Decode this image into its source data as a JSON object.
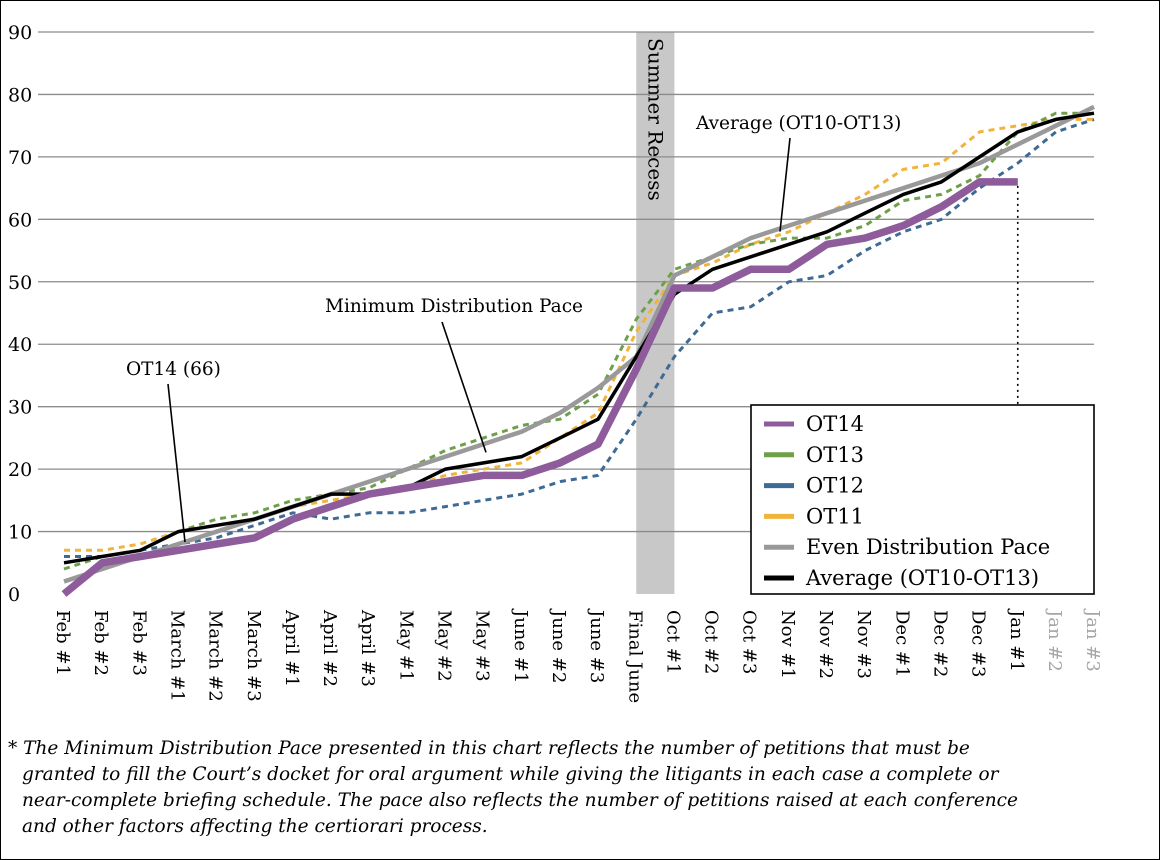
{
  "chart_data": {
    "type": "line",
    "title": "",
    "xlabel": "",
    "ylabel": "",
    "ylim": [
      0,
      90
    ],
    "yticks": [
      0,
      10,
      20,
      30,
      40,
      50,
      60,
      70,
      80,
      90
    ],
    "grid": true,
    "categories": [
      "Feb #1",
      "Feb #2",
      "Feb #3",
      "March #1",
      "March #2",
      "March #3",
      "April #1",
      "April #2",
      "April #3",
      "May #1",
      "May #2",
      "May #3",
      "June #1",
      "June #2",
      "June #3",
      "Final June",
      "Oct #1",
      "Oct #2",
      "Oct #3",
      "Nov #1",
      "Nov #2",
      "Nov #3",
      "Dec #1",
      "Dec #2",
      "Dec #3",
      "Jan #1",
      "Jan #2",
      "Jan #3"
    ],
    "muted_categories": [
      "Jan #2",
      "Jan #3"
    ],
    "shaded_band": {
      "label": "Summer Recess",
      "from": "Final June",
      "to": "Oct #1",
      "color": "#c8c8c8"
    },
    "series": [
      {
        "name": "OT14",
        "color": "#8e5b9b",
        "style": "thick",
        "values": [
          0,
          5,
          6,
          7,
          8,
          9,
          12,
          14,
          16,
          17,
          18,
          19,
          19,
          21,
          24,
          36,
          49,
          49,
          52,
          52,
          56,
          57,
          59,
          62,
          66,
          66,
          null,
          null
        ]
      },
      {
        "name": "OT13",
        "color": "#6ea04a",
        "style": "dashed",
        "values": [
          4,
          6,
          7,
          10,
          12,
          13,
          15,
          16,
          17,
          20,
          23,
          25,
          27,
          28,
          32,
          44,
          52,
          54,
          56,
          57,
          57,
          59,
          63,
          64,
          67,
          74,
          77,
          77
        ]
      },
      {
        "name": "OT12",
        "color": "#3e6a94",
        "style": "dashed",
        "values": [
          6,
          6,
          7,
          8,
          9,
          11,
          13,
          12,
          13,
          13,
          14,
          15,
          16,
          18,
          19,
          28,
          38,
          45,
          46,
          50,
          51,
          55,
          58,
          60,
          65,
          69,
          74,
          76
        ]
      },
      {
        "name": "OT11",
        "color": "#f0b43c",
        "style": "dashed",
        "values": [
          7,
          7,
          8,
          10,
          11,
          12,
          14,
          15,
          16,
          17,
          19,
          20,
          21,
          25,
          29,
          42,
          51,
          53,
          56,
          58,
          61,
          64,
          68,
          69,
          74,
          75,
          76,
          76
        ]
      },
      {
        "name": "Even Distribution Pace",
        "color": "#999999",
        "style": "solid",
        "values": [
          2,
          4,
          6,
          8,
          10,
          12,
          14,
          16,
          18,
          20,
          22,
          24,
          26,
          29,
          33,
          38,
          51,
          54,
          57,
          59,
          61,
          63,
          65,
          67,
          69,
          72,
          75,
          78
        ]
      },
      {
        "name": "Average (OT10-OT13)",
        "color": "#000000",
        "style": "solid",
        "values": [
          5,
          6,
          7,
          10,
          11,
          12,
          14,
          16,
          16,
          17,
          20,
          21,
          22,
          25,
          28,
          38,
          48,
          52,
          54,
          56,
          58,
          61,
          64,
          66,
          70,
          74,
          76,
          77
        ]
      }
    ],
    "legend": {
      "placement": "bottom-right"
    },
    "annotations": [
      {
        "text": "Average (OT10-OT13)"
      },
      {
        "text": "Minimum Distribution Pace"
      },
      {
        "text": "OT14 (66)"
      }
    ],
    "summer_label": "Summer Recess"
  },
  "footnote": {
    "lines": [
      "* The Minimum Distribution Pace presented in this chart reflects the number of petitions that must be",
      "granted to fill the Court’s docket for oral argument while giving the litigants in each case a complete or",
      "near-complete briefing schedule. The pace also reflects the number of petitions raised at each conference",
      "and other factors affecting the certiorari process."
    ]
  }
}
